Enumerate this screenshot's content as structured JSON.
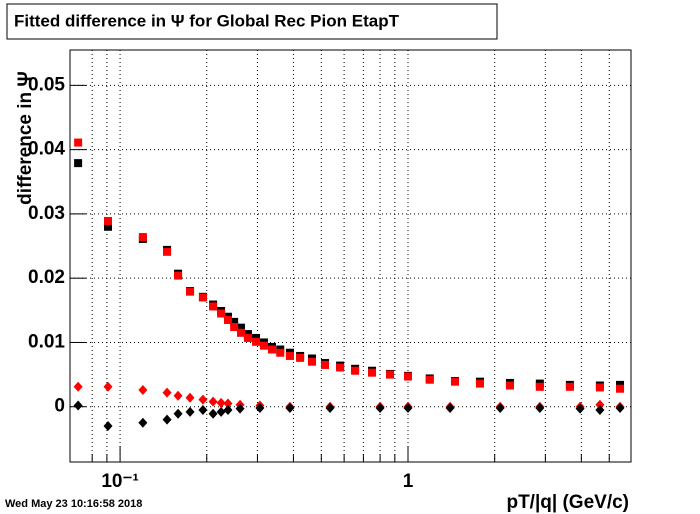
{
  "chart_data": {
    "type": "scatter",
    "title": "Fitted difference in  Ψ  for Global Rec Pion EtapT",
    "x_label": "pT/|q| (GeV/c)",
    "y_label": "difference in Ψ",
    "timestamp": "Wed May 23 10:16:58 2018",
    "xlog": true,
    "grid": true,
    "xlim": [
      0.067,
      5.95
    ],
    "ylim": [
      -0.0086,
      0.0555
    ],
    "xticks": [
      {
        "value": 0.1,
        "label": "10⁻¹"
      },
      1
    ],
    "xminorticks": [
      0.08,
      0.09,
      0.2,
      0.3,
      0.4,
      0.5,
      0.6,
      0.7,
      0.8,
      0.9,
      2,
      3,
      4,
      5
    ],
    "yticks": [
      0,
      0.01,
      0.02,
      0.03,
      0.04,
      0.05
    ],
    "series": [
      {
        "color": "#000000",
        "marker": "square",
        "x": [
          0.0715,
          0.0908,
          0.12,
          0.1456,
          0.159,
          0.175,
          0.194,
          0.2104,
          0.2243,
          0.237,
          0.249,
          0.263,
          0.278,
          0.2966,
          0.316,
          0.337,
          0.36,
          0.389,
          0.422,
          0.464,
          0.515,
          0.581,
          0.655,
          0.75,
          0.866,
          1.0,
          1.19,
          1.456,
          1.778,
          2.26,
          2.87,
          3.65,
          4.64,
          5.45
        ],
        "values": [
          0.0379,
          0.028,
          0.0261,
          0.0244,
          0.0207,
          0.018,
          0.0171,
          0.0159,
          0.0149,
          0.014,
          0.0132,
          0.0123,
          0.0113,
          0.0107,
          0.01,
          0.0093,
          0.0089,
          0.0084,
          0.0079,
          0.0075,
          0.0068,
          0.0064,
          0.0059,
          0.0056,
          0.0051,
          0.0048,
          0.0044,
          0.004,
          0.0039,
          0.0037,
          0.0036,
          0.0034,
          0.0033,
          0.0034
        ]
      },
      {
        "color": "#ff0000",
        "marker": "square",
        "x": [
          0.0715,
          0.0908,
          0.12,
          0.1456,
          0.159,
          0.175,
          0.194,
          0.2104,
          0.2243,
          0.237,
          0.249,
          0.263,
          0.278,
          0.2966,
          0.316,
          0.337,
          0.36,
          0.389,
          0.422,
          0.464,
          0.515,
          0.581,
          0.655,
          0.75,
          0.866,
          1.0,
          1.19,
          1.456,
          1.778,
          2.26,
          2.87,
          3.65,
          4.64,
          5.45
        ],
        "values": [
          0.0411,
          0.0289,
          0.0264,
          0.0241,
          0.0204,
          0.0179,
          0.017,
          0.0156,
          0.0145,
          0.0135,
          0.0124,
          0.0115,
          0.0107,
          0.0101,
          0.0095,
          0.0089,
          0.0084,
          0.0079,
          0.0076,
          0.007,
          0.0065,
          0.0061,
          0.0056,
          0.0053,
          0.005,
          0.0047,
          0.0042,
          0.0039,
          0.0036,
          0.0033,
          0.0031,
          0.0031,
          0.003,
          0.0028
        ]
      },
      {
        "color": "#ff0000",
        "marker": "diamond",
        "x": [
          0.0715,
          0.0908,
          0.12,
          0.1456,
          0.159,
          0.175,
          0.194,
          0.2104,
          0.2243,
          0.237,
          0.261,
          0.306,
          0.389,
          0.536,
          0.8,
          1.0,
          1.4,
          2.09,
          2.87,
          3.96,
          4.64,
          5.45
        ],
        "values": [
          0.0031,
          0.0031,
          0.0026,
          0.0022,
          0.0017,
          0.0014,
          0.0011,
          0.0008,
          0.0006,
          0.0005,
          0.0003,
          0.0002,
          0,
          0,
          0,
          0,
          0,
          0,
          0,
          0,
          0.0003,
          0
        ]
      },
      {
        "color": "#000000",
        "marker": "diamond",
        "x": [
          0.0715,
          0.0908,
          0.12,
          0.1456,
          0.159,
          0.175,
          0.194,
          0.2104,
          0.2243,
          0.237,
          0.261,
          0.306,
          0.389,
          0.536,
          0.8,
          1.0,
          1.4,
          2.09,
          2.87,
          3.96,
          4.64,
          5.45
        ],
        "values": [
          0.0002,
          -0.003,
          -0.0025,
          -0.002,
          -0.0011,
          -0.0008,
          -0.0005,
          -0.0011,
          -0.0008,
          -0.0005,
          -0.0003,
          -0.0002,
          -0.0002,
          -0.0002,
          -0.0002,
          -0.0002,
          -0.0002,
          -0.0002,
          -0.0002,
          -0.0003,
          -0.0005,
          -0.0002
        ]
      }
    ]
  }
}
